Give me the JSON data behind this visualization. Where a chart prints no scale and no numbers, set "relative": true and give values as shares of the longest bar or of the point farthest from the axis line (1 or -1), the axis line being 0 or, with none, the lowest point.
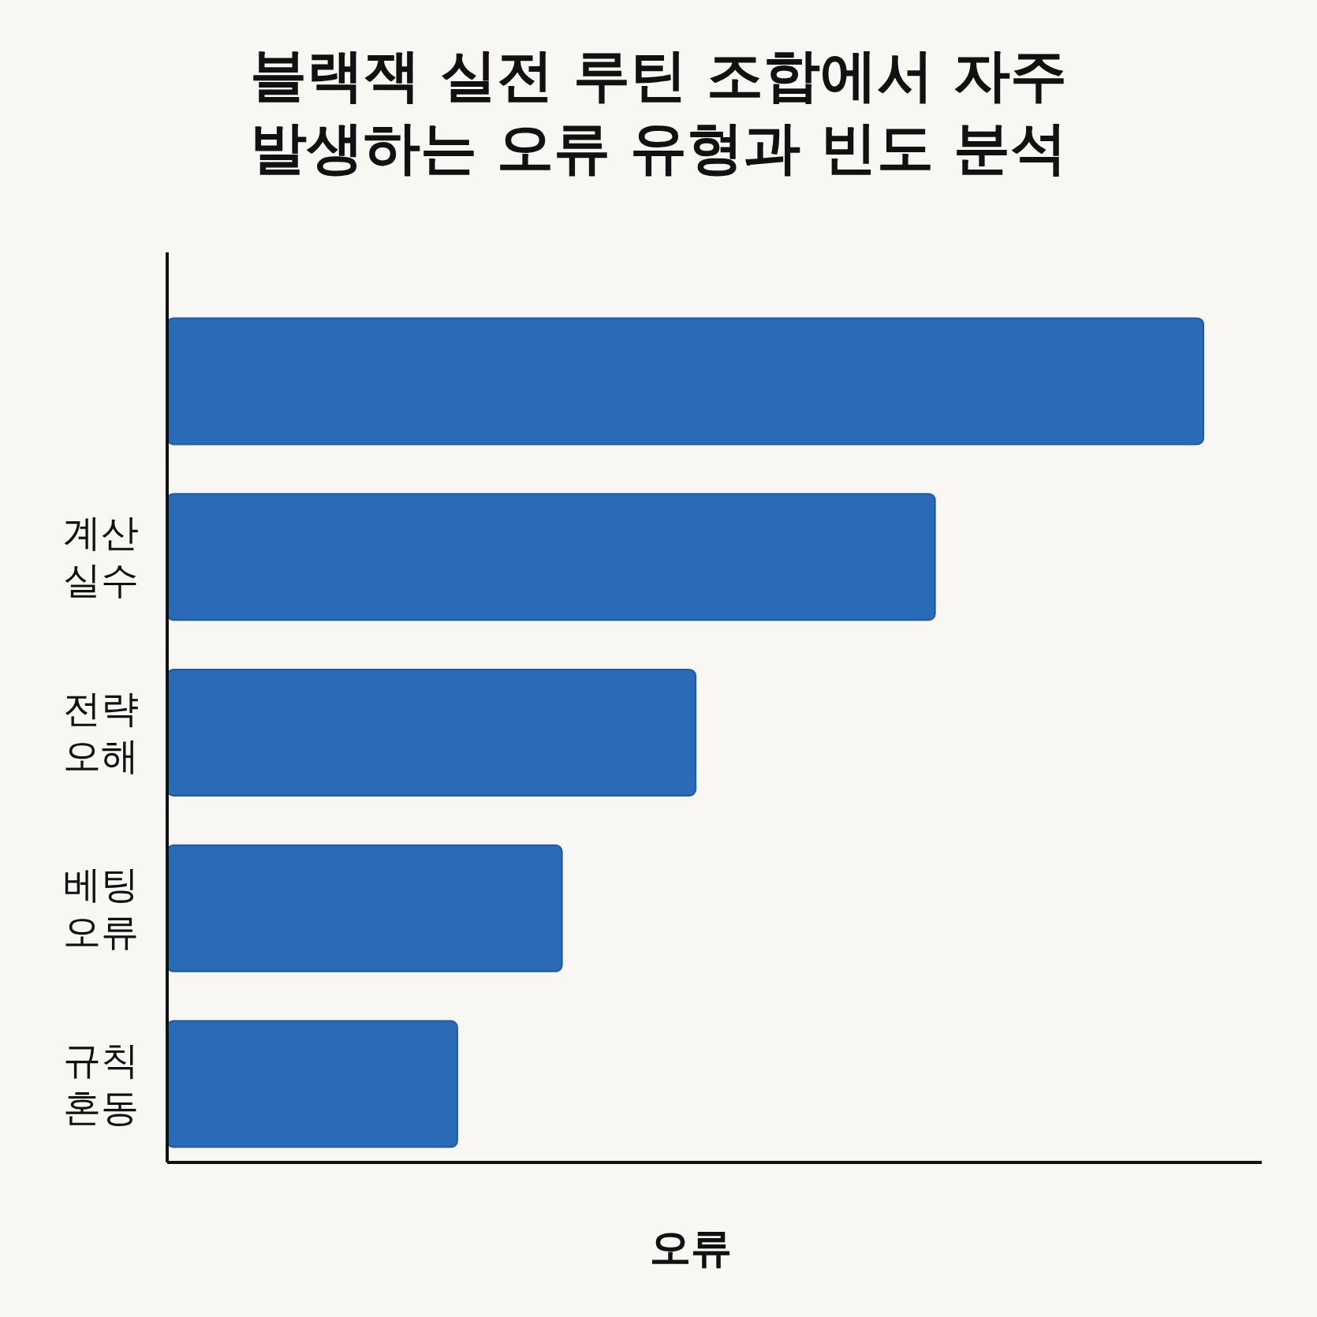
{
  "chart_data": {
    "type": "bar",
    "orientation": "horizontal",
    "relative": true,
    "title": "블랙잭 실전 루틴 조합에서 자주 발생하는 오류 유형과 빈도 분석",
    "xlabel": "오류",
    "categories": [
      null,
      "계산 실수",
      "전략 오해",
      "베팅 오류",
      "규칙 혼동"
    ],
    "values": [
      1,
      0.741,
      0.51,
      0.381,
      0.28
    ],
    "color": "#2a6bb8"
  }
}
